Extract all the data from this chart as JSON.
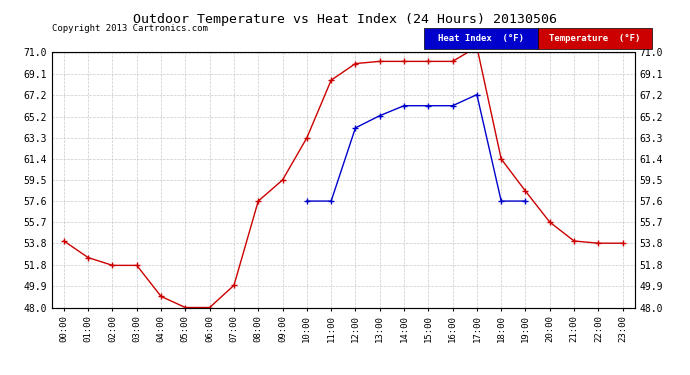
{
  "title": "Outdoor Temperature vs Heat Index (24 Hours) 20130506",
  "copyright": "Copyright 2013 Cartronics.com",
  "x_labels": [
    "00:00",
    "01:00",
    "02:00",
    "03:00",
    "04:00",
    "05:00",
    "06:00",
    "07:00",
    "08:00",
    "09:00",
    "10:00",
    "11:00",
    "12:00",
    "13:00",
    "14:00",
    "15:00",
    "16:00",
    "17:00",
    "18:00",
    "19:00",
    "20:00",
    "21:00",
    "22:00",
    "23:00"
  ],
  "temperature": [
    54.0,
    52.5,
    51.8,
    51.8,
    49.0,
    48.0,
    48.0,
    50.0,
    57.6,
    59.5,
    63.3,
    68.5,
    70.0,
    70.2,
    70.2,
    70.2,
    70.2,
    71.5,
    61.4,
    58.5,
    55.7,
    54.0,
    53.8,
    53.8
  ],
  "heat_index": [
    null,
    null,
    null,
    null,
    null,
    null,
    null,
    null,
    null,
    null,
    57.6,
    57.6,
    64.2,
    65.3,
    66.2,
    66.2,
    66.2,
    67.2,
    57.6,
    57.6,
    null,
    null,
    null,
    null
  ],
  "ylim": [
    48.0,
    71.0
  ],
  "yticks": [
    48.0,
    49.9,
    51.8,
    53.8,
    55.7,
    57.6,
    59.5,
    61.4,
    63.3,
    65.2,
    67.2,
    69.1,
    71.0
  ],
  "temp_color": "#cc0000",
  "heat_color": "#0000cc",
  "bg_color": "#ffffff",
  "grid_color": "#bbbbbb",
  "legend_heat_bg": "#0000cc",
  "legend_temp_bg": "#cc0000"
}
